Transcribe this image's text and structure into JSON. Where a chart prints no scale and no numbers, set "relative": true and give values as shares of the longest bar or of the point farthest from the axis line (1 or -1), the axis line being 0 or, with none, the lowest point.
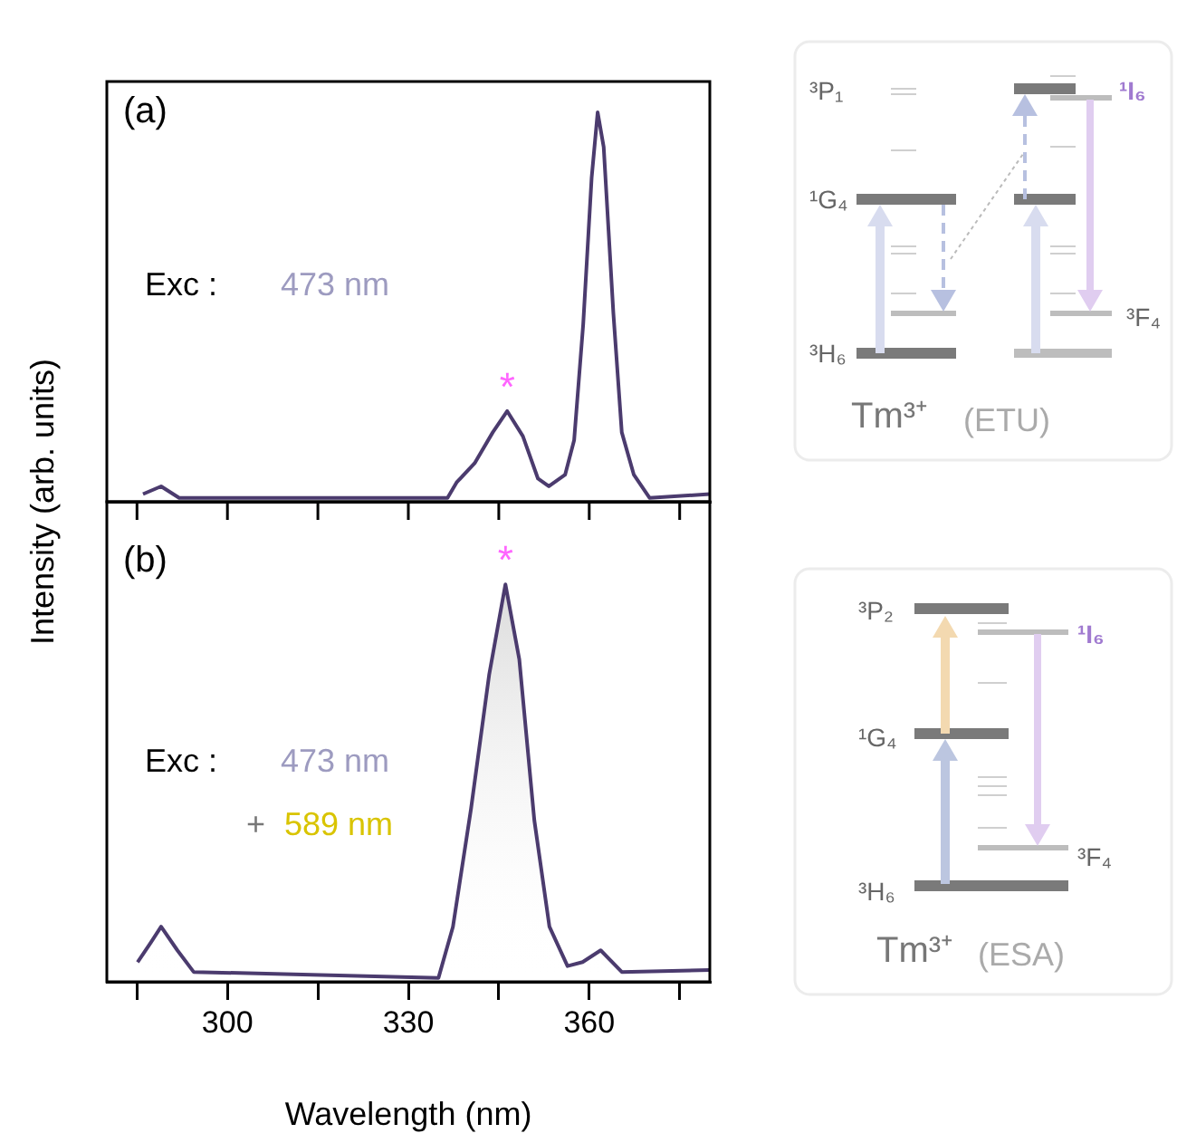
{
  "chart_data": [
    {
      "type": "line",
      "ylabel": "Intensity (arb. units)",
      "relative": true,
      "tick_labels": false,
      "xlim": [
        280,
        380
      ],
      "xticks": [
        {
          "value": 285,
          "label": null
        },
        300,
        {
          "value": 315,
          "label": null
        },
        330,
        {
          "value": 345,
          "label": null
        },
        360,
        {
          "value": 375,
          "label": null
        }
      ],
      "x": [
        286,
        289,
        292,
        336.5,
        338,
        341,
        344,
        346.4,
        349,
        351.5,
        353.3,
        356,
        357.5,
        359,
        360.4,
        361.4,
        362.4,
        364,
        365.4,
        367.4,
        370,
        380
      ],
      "series": [
        {
          "color": "#4b3b6e",
          "values": [
            0.01,
            0.03,
            0.0,
            0.0,
            0.04,
            0.09,
            0.17,
            0.225,
            0.16,
            0.05,
            0.03,
            0.06,
            0.15,
            0.45,
            0.83,
            1.0,
            0.91,
            0.48,
            0.17,
            0.06,
            0.0,
            0.01
          ]
        }
      ],
      "annotations": [
        "(a)",
        "Exc :",
        "473 nm",
        {
          "text": "*",
          "x": 346.4,
          "y": 0.225
        }
      ]
    },
    {
      "type": "area",
      "xlabel": "Wavelength (nm)",
      "relative": true,
      "xlim": [
        280,
        380
      ],
      "xticks": [
        {
          "value": 285,
          "label": null
        },
        300,
        {
          "value": 315,
          "label": null
        },
        330,
        {
          "value": 345,
          "label": null
        },
        360,
        {
          "value": 375,
          "label": null
        }
      ],
      "x": [
        285.1,
        287.3,
        289,
        291.7,
        294.4,
        335,
        337.4,
        340.4,
        343.4,
        346.1,
        348.4,
        350.9,
        353.4,
        356.4,
        358.9,
        361.9,
        365.4,
        380
      ],
      "series": [
        {
          "color": "#4b3b6e",
          "values": [
            0.04,
            0.09,
            0.13,
            0.07,
            0.015,
            0.0,
            0.13,
            0.43,
            0.77,
            1.0,
            0.81,
            0.4,
            0.13,
            0.03,
            0.04,
            0.07,
            0.015,
            0.02
          ]
        }
      ],
      "annotations": [
        "(b)",
        "Exc :",
        "473 nm",
        "+",
        "589 nm",
        {
          "text": "*",
          "x": 346.1,
          "y": 1.0
        }
      ]
    },
    {
      "type": "other",
      "annotations": [
        "³P₁",
        "¹G₄",
        "³H₆",
        "¹I₆",
        "³F₄",
        "Tm³⁺",
        "(ETU)"
      ]
    },
    {
      "type": "other",
      "annotations": [
        "³P₂",
        "¹G₄",
        "³H₆",
        "¹I₆",
        "³F₄",
        "Tm³⁺",
        "(ESA)"
      ]
    }
  ]
}
